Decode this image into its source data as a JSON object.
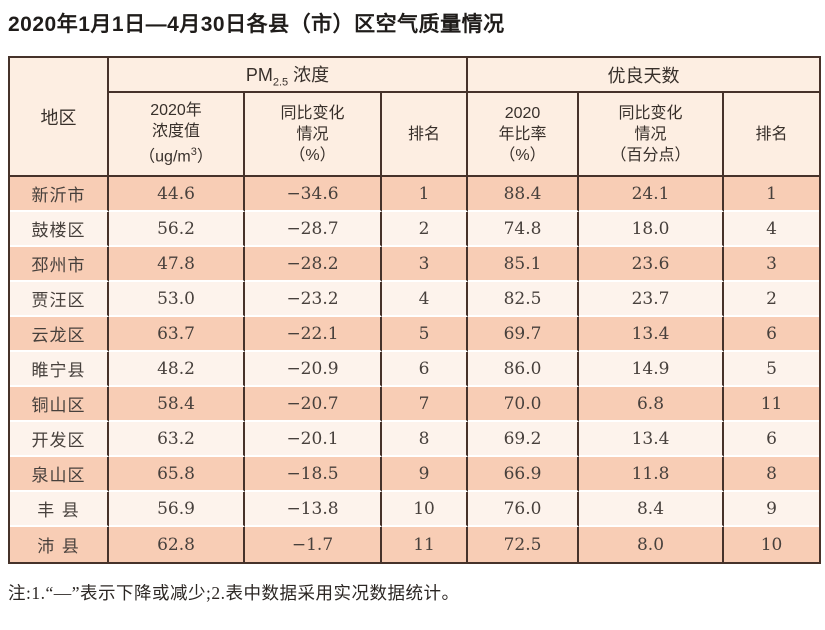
{
  "title": "2020年1月1日—4月30日各县（市）区空气质量情况",
  "note": "注:1.“—”表示下降或减少;2.表中数据采用实况数据统计。",
  "colors": {
    "border": "#46322a",
    "header_bg": "#fdeee2",
    "row_odd_bg": "#f8cdb5",
    "row_even_bg": "#fdf3ec",
    "data_text": "#47403c",
    "title_text": "#1f1c1a"
  },
  "table": {
    "region_header": "地区",
    "pm_group": {
      "prefix": "PM",
      "sub": "2.5",
      "suffix": " 浓度"
    },
    "good_days_group": "优良天数",
    "pm_conc": {
      "l1": "2020年",
      "l2": "浓度值",
      "l3_pre": "（ug/m",
      "l3_sup": "3",
      "l3_suf": "）"
    },
    "pm_change": {
      "l1": "同比变化",
      "l2": "情况",
      "l3": "（%）"
    },
    "pm_rank": "排名",
    "gd_ratio": {
      "l1": "2020",
      "l2": "年比率",
      "l3": "（%）"
    },
    "gd_change": {
      "l1": "同比变化",
      "l2": "情况",
      "l3": "（百分点）"
    },
    "gd_rank": "排名",
    "rows": [
      {
        "region": "新沂市",
        "pm_value": "44.6",
        "pm_change": "−34.6",
        "pm_rank": "1",
        "gd_ratio": "88.4",
        "gd_change": "24.1",
        "gd_rank": "1"
      },
      {
        "region": "鼓楼区",
        "pm_value": "56.2",
        "pm_change": "−28.7",
        "pm_rank": "2",
        "gd_ratio": "74.8",
        "gd_change": "18.0",
        "gd_rank": "4"
      },
      {
        "region": "邳州市",
        "pm_value": "47.8",
        "pm_change": "−28.2",
        "pm_rank": "3",
        "gd_ratio": "85.1",
        "gd_change": "23.6",
        "gd_rank": "3"
      },
      {
        "region": "贾汪区",
        "pm_value": "53.0",
        "pm_change": "−23.2",
        "pm_rank": "4",
        "gd_ratio": "82.5",
        "gd_change": "23.7",
        "gd_rank": "2"
      },
      {
        "region": "云龙区",
        "pm_value": "63.7",
        "pm_change": "−22.1",
        "pm_rank": "5",
        "gd_ratio": "69.7",
        "gd_change": "13.4",
        "gd_rank": "6"
      },
      {
        "region": "睢宁县",
        "pm_value": "48.2",
        "pm_change": "−20.9",
        "pm_rank": "6",
        "gd_ratio": "86.0",
        "gd_change": "14.9",
        "gd_rank": "5"
      },
      {
        "region": "铜山区",
        "pm_value": "58.4",
        "pm_change": "−20.7",
        "pm_rank": "7",
        "gd_ratio": "70.0",
        "gd_change": "6.8",
        "gd_rank": "11"
      },
      {
        "region": "开发区",
        "pm_value": "63.2",
        "pm_change": "−20.1",
        "pm_rank": "8",
        "gd_ratio": "69.2",
        "gd_change": "13.4",
        "gd_rank": "6"
      },
      {
        "region": "泉山区",
        "pm_value": "65.8",
        "pm_change": "−18.5",
        "pm_rank": "9",
        "gd_ratio": "66.9",
        "gd_change": "11.8",
        "gd_rank": "8"
      },
      {
        "region": "丰 县",
        "pm_value": "56.9",
        "pm_change": "−13.8",
        "pm_rank": "10",
        "gd_ratio": "76.0",
        "gd_change": "8.4",
        "gd_rank": "9"
      },
      {
        "region": "沛 县",
        "pm_value": "62.8",
        "pm_change": "−1.7",
        "pm_rank": "11",
        "gd_ratio": "72.5",
        "gd_change": "8.0",
        "gd_rank": "10"
      }
    ]
  }
}
